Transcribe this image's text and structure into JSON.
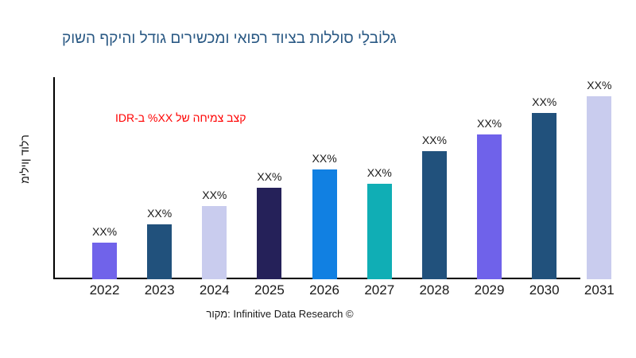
{
  "title": {
    "text": "גלוֹבלָי סוללות בציוד רפואי ומכשירים גודל והיקף השוק",
    "color": "#2A5984"
  },
  "annotation": {
    "text": "קצב צמיחה של XX% ב-IDR",
    "color": "#FF0000"
  },
  "caption": {
    "text": "מקור: Infinitive Data Research ©"
  },
  "chart_data": {
    "type": "bar",
    "title": "גלוֹבלָי סוללות בציוד רפואי ומכשירים גודל והיקף השוק",
    "xlabel": "",
    "ylabel": "מיליון דולר",
    "categories": [
      "2022",
      "2023",
      "2024",
      "2025",
      "2026",
      "2027",
      "2028",
      "2029",
      "2030",
      "2031"
    ],
    "values": [
      20,
      30,
      40,
      50,
      60,
      52,
      70,
      79,
      91,
      100
    ],
    "bar_labels": [
      "XX%",
      "XX%",
      "XX%",
      "XX%",
      "XX%",
      "XX%",
      "XX%",
      "XX%",
      "XX%",
      "XX%"
    ],
    "bar_colors": [
      "#7063EA",
      "#21517C",
      "#C9CCEE",
      "#252159",
      "#1180E2",
      "#10AEB5",
      "#21517C",
      "#6F62EA",
      "#21517C",
      "#C9CCEE"
    ],
    "ylim": [
      0,
      105
    ],
    "grid": false,
    "legend": false,
    "annotation_text": "קצב צמיחה של XX% ב-IDR",
    "source_caption": "מקור: Infinitive Data Research ©"
  }
}
